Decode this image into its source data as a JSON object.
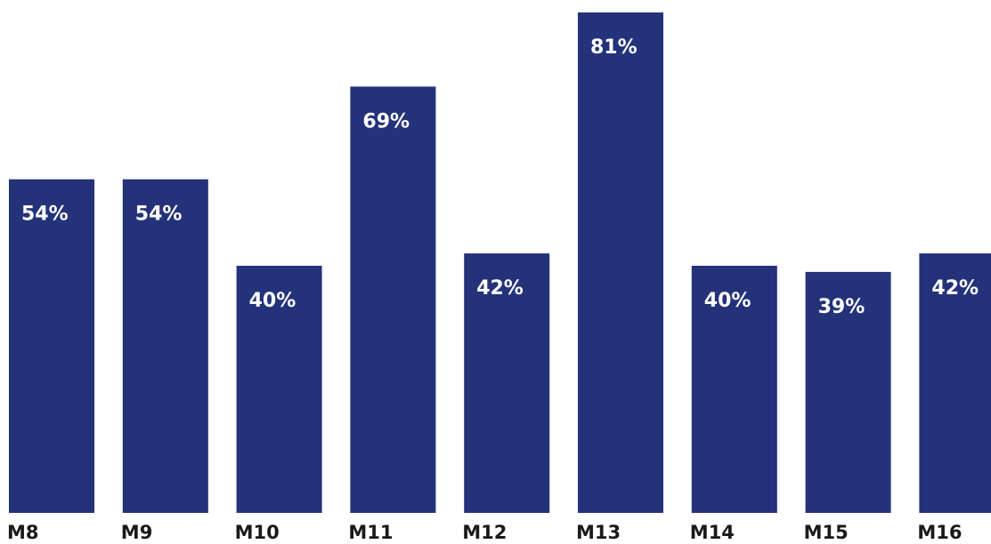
{
  "chart_data": {
    "type": "bar",
    "categories": [
      "M8",
      "M9",
      "M10",
      "M11",
      "M12",
      "M13",
      "M14",
      "M15",
      "M16"
    ],
    "values": [
      54,
      54,
      40,
      69,
      42,
      81,
      40,
      39,
      42
    ],
    "labels": [
      "54%",
      "54%",
      "40%",
      "69%",
      "42%",
      "81%",
      "40%",
      "39%",
      "42%"
    ],
    "title": "",
    "xlabel": "",
    "ylabel": "",
    "ylim": [
      0,
      81
    ],
    "grid": false,
    "bar_color": "#24327a"
  }
}
